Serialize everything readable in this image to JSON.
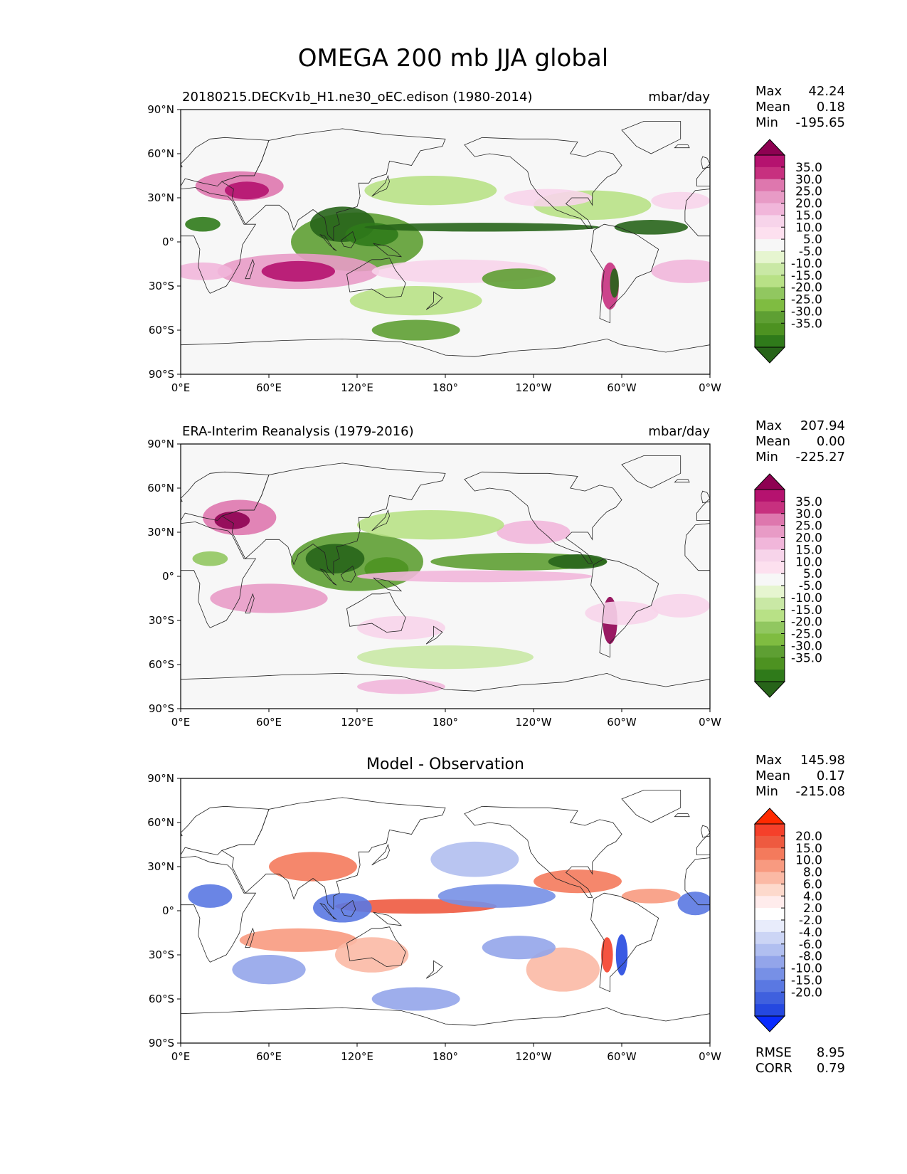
{
  "page_title": "OMEGA 200 mb JJA global",
  "lat_ticks": [
    "90°N",
    "60°N",
    "30°N",
    "0°",
    "30°S",
    "60°S",
    "90°S"
  ],
  "lon_ticks": [
    "0°E",
    "60°E",
    "120°E",
    "180°",
    "120°W",
    "60°W",
    "0°W"
  ],
  "chart_data": [
    {
      "type": "heatmap",
      "title": "20180215.DECKv1b_H1.ne30_oEC.edison (1980-2014)",
      "units": "mbar/day",
      "stats": [
        {
          "label": "Max",
          "value": "42.24"
        },
        {
          "label": "Mean",
          "value": "0.18"
        },
        {
          "label": "Min",
          "value": "-195.65"
        }
      ],
      "colorbar_ticks": [
        "35.0",
        "30.0",
        "25.0",
        "20.0",
        "15.0",
        "10.0",
        "5.0",
        "-5.0",
        "-10.0",
        "-15.0",
        "-20.0",
        "-25.0",
        "-30.0",
        "-35.0"
      ],
      "colorbar_colors": [
        "#8e0152",
        "#b5126f",
        "#c7307f",
        "#de77ae",
        "#e89bc6",
        "#f1b6da",
        "#f7d4ea",
        "#fde0ef",
        "#f7f7f7",
        "#e6f5d0",
        "#c9e8a5",
        "#b8e186",
        "#91c760",
        "#7fbc41",
        "#5e9f33",
        "#4d9221",
        "#2f7a1a",
        "#276419"
      ],
      "xlim": [
        0,
        360
      ],
      "ylim": [
        -90,
        90
      ]
    },
    {
      "type": "heatmap",
      "title": "ERA-Interim Reanalysis (1979-2016)",
      "units": "mbar/day",
      "stats": [
        {
          "label": "Max",
          "value": "207.94"
        },
        {
          "label": "Mean",
          "value": "0.00"
        },
        {
          "label": "Min",
          "value": "-225.27"
        }
      ],
      "colorbar_ticks": [
        "35.0",
        "30.0",
        "25.0",
        "20.0",
        "15.0",
        "10.0",
        "5.0",
        "-5.0",
        "-10.0",
        "-15.0",
        "-20.0",
        "-25.0",
        "-30.0",
        "-35.0"
      ],
      "colorbar_colors": [
        "#8e0152",
        "#b5126f",
        "#c7307f",
        "#de77ae",
        "#e89bc6",
        "#f1b6da",
        "#f7d4ea",
        "#fde0ef",
        "#f7f7f7",
        "#e6f5d0",
        "#c9e8a5",
        "#b8e186",
        "#91c760",
        "#7fbc41",
        "#5e9f33",
        "#4d9221",
        "#2f7a1a",
        "#276419"
      ],
      "xlim": [
        0,
        360
      ],
      "ylim": [
        -90,
        90
      ]
    },
    {
      "type": "heatmap",
      "title": "Model - Observation",
      "units": "",
      "stats": [
        {
          "label": "Max",
          "value": "145.98"
        },
        {
          "label": "Mean",
          "value": "0.17"
        },
        {
          "label": "Min",
          "value": "-215.08"
        }
      ],
      "colorbar_ticks": [
        "20.0",
        "15.0",
        "10.0",
        "8.0",
        "6.0",
        "4.0",
        "2.0",
        "-2.0",
        "-4.0",
        "-6.0",
        "-8.0",
        "-10.0",
        "-15.0",
        "-20.0"
      ],
      "colorbar_colors": [
        "#ff2a00",
        "#f5402a",
        "#ee5a40",
        "#f47a5c",
        "#f89a80",
        "#fbb9a5",
        "#fdd9cc",
        "#ffecec",
        "#ffffff",
        "#e8ecfb",
        "#ccd5f5",
        "#b1bff0",
        "#93a5ea",
        "#7790e6",
        "#5a78e2",
        "#3f60de",
        "#2548e0",
        "#0a2cff"
      ],
      "xlim": [
        0,
        360
      ],
      "ylim": [
        -90,
        90
      ],
      "metrics": [
        {
          "label": "RMSE",
          "value": "8.95"
        },
        {
          "label": "CORR",
          "value": "0.79"
        }
      ]
    }
  ]
}
